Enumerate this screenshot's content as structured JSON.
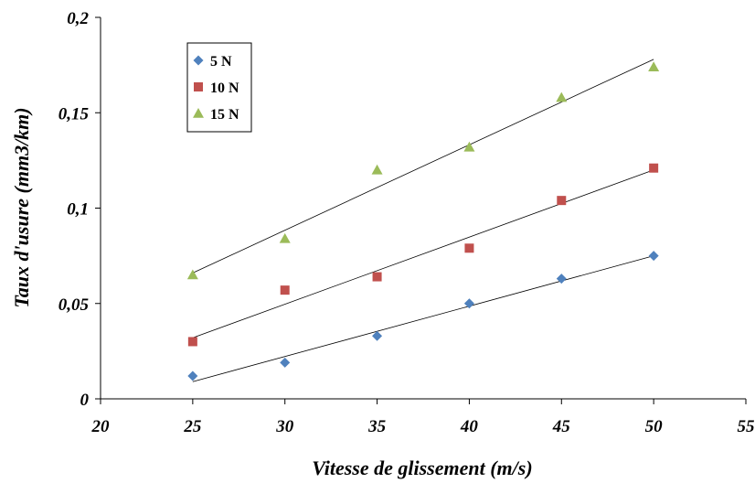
{
  "chart_data": {
    "type": "scatter",
    "title": "",
    "xlabel": "Vitesse de glissement (m/s)",
    "ylabel": "Taux d'usure (mm3/km)",
    "xlim": [
      20,
      55
    ],
    "ylim": [
      0,
      0.2
    ],
    "x_ticks": [
      "20",
      "25",
      "30",
      "35",
      "40",
      "45",
      "50",
      "55"
    ],
    "y_ticks": [
      "0",
      "0,05",
      "0,1",
      "0,15",
      "0,2"
    ],
    "grid": false,
    "legend_position": "top-left",
    "series": [
      {
        "name": "5 N",
        "marker": "diamond",
        "color": "#4F81BD",
        "x": [
          25,
          30,
          35,
          40,
          45,
          50
        ],
        "y": [
          0.012,
          0.019,
          0.033,
          0.05,
          0.063,
          0.075
        ],
        "trendline": {
          "x": [
            25,
            50
          ],
          "y": [
            0.009,
            0.075
          ]
        }
      },
      {
        "name": "10 N",
        "marker": "square",
        "color": "#C0504D",
        "x": [
          25,
          30,
          35,
          40,
          45,
          50
        ],
        "y": [
          0.03,
          0.057,
          0.064,
          0.079,
          0.104,
          0.121
        ],
        "trendline": {
          "x": [
            25,
            50
          ],
          "y": [
            0.032,
            0.12
          ]
        }
      },
      {
        "name": "15 N",
        "marker": "triangle",
        "color": "#9BBB59",
        "x": [
          25,
          30,
          35,
          40,
          45,
          50
        ],
        "y": [
          0.065,
          0.084,
          0.12,
          0.132,
          0.158,
          0.174
        ],
        "trendline": {
          "x": [
            25,
            50
          ],
          "y": [
            0.066,
            0.178
          ]
        }
      }
    ]
  }
}
